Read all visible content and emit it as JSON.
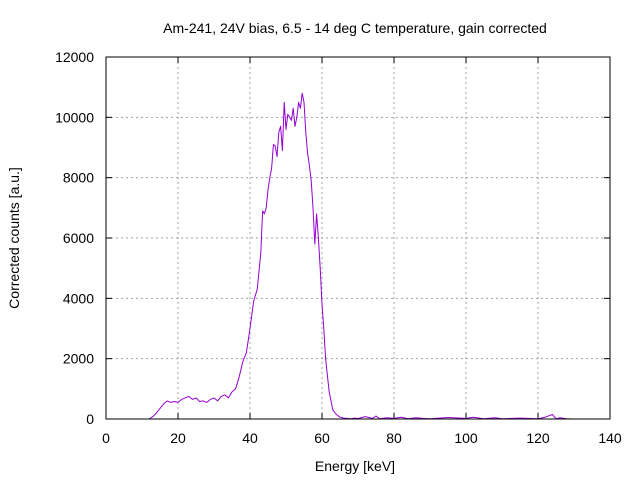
{
  "chart_data": {
    "type": "line",
    "title": "Am-241, 24V bias, 6.5 - 14 deg C temperature, gain corrected",
    "xlabel": "Energy [keV]",
    "ylabel": "Corrected counts [a.u.]",
    "xlim": [
      0,
      140
    ],
    "ylim": [
      0,
      12000
    ],
    "xticks": [
      0,
      20,
      40,
      60,
      80,
      100,
      120,
      140
    ],
    "yticks": [
      0,
      2000,
      4000,
      6000,
      8000,
      10000,
      12000
    ],
    "grid": true,
    "legend": "none",
    "colors": {
      "line": "#9400d3",
      "grid": "#a0a0a0",
      "axis": "#000000"
    },
    "series": [
      {
        "x": [
          12,
          13,
          14,
          15,
          16,
          17,
          18,
          19,
          20,
          21,
          22,
          23,
          24,
          25,
          26,
          27,
          28,
          29,
          30,
          31,
          32,
          33,
          34,
          35,
          36,
          37,
          38,
          39,
          40,
          41,
          42,
          43,
          43.5,
          44,
          44.5,
          45,
          45.5,
          46,
          46.5,
          47,
          47.5,
          48,
          48.5,
          49,
          49.5,
          50,
          50.5,
          51,
          51.5,
          52,
          52.5,
          53,
          53.5,
          54,
          54.5,
          55,
          55.5,
          56,
          56.5,
          57,
          57.5,
          58,
          58.5,
          59,
          59.5,
          60,
          60.5,
          61,
          62,
          63,
          64,
          65,
          66,
          67,
          68,
          69,
          70,
          72,
          74,
          75,
          76,
          78,
          80,
          82,
          84,
          86,
          88,
          90,
          95,
          100,
          102,
          105,
          108,
          110,
          115,
          120,
          122,
          124,
          125,
          126,
          128,
          130
        ],
        "y": [
          0,
          80,
          200,
          350,
          500,
          600,
          550,
          580,
          550,
          650,
          700,
          750,
          650,
          700,
          580,
          600,
          550,
          650,
          700,
          600,
          750,
          800,
          700,
          900,
          1000,
          1400,
          1900,
          2200,
          3000,
          3900,
          4300,
          5500,
          6900,
          6800,
          7000,
          7600,
          8000,
          8300,
          9100,
          9050,
          8700,
          9500,
          9700,
          8900,
          10500,
          9600,
          10100,
          10000,
          9900,
          10300,
          9700,
          10000,
          10500,
          10300,
          10800,
          10500,
          9500,
          8800,
          8400,
          7900,
          7000,
          5800,
          6800,
          6000,
          5000,
          3800,
          3000,
          2000,
          900,
          300,
          150,
          60,
          30,
          20,
          10,
          30,
          15,
          80,
          20,
          100,
          10,
          40,
          20,
          60,
          10,
          40,
          20,
          10,
          50,
          20,
          60,
          10,
          40,
          10,
          30,
          10,
          60,
          150,
          10,
          40,
          5,
          0
        ]
      }
    ]
  }
}
